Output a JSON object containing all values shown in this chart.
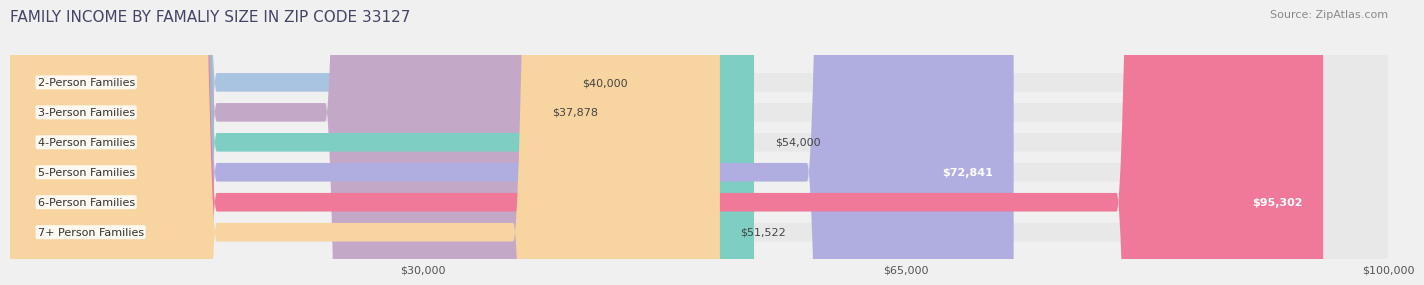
{
  "title": "FAMILY INCOME BY FAMALIY SIZE IN ZIP CODE 33127",
  "source": "Source: ZipAtlas.com",
  "categories": [
    "2-Person Families",
    "3-Person Families",
    "4-Person Families",
    "5-Person Families",
    "6-Person Families",
    "7+ Person Families"
  ],
  "values": [
    40000,
    37878,
    54000,
    72841,
    95302,
    51522
  ],
  "labels": [
    "$40,000",
    "$37,878",
    "$54,000",
    "$72,841",
    "$95,302",
    "$51,522"
  ],
  "bar_colors": [
    "#a8c4e0",
    "#c4a8c8",
    "#7ecec4",
    "#b0aee0",
    "#f07898",
    "#f8d4a0"
  ],
  "label_colors": [
    "#444444",
    "#444444",
    "#444444",
    "#ffffff",
    "#ffffff",
    "#444444"
  ],
  "xmin": 0,
  "xmax": 100000,
  "xticks": [
    30000,
    65000,
    100000
  ],
  "xtick_labels": [
    "$30,000",
    "$65,000",
    "$100,000"
  ],
  "background_color": "#f0f0f0",
  "bar_bg_color": "#f0f0f0",
  "title_fontsize": 11,
  "source_fontsize": 8,
  "label_fontsize": 8,
  "category_fontsize": 8
}
